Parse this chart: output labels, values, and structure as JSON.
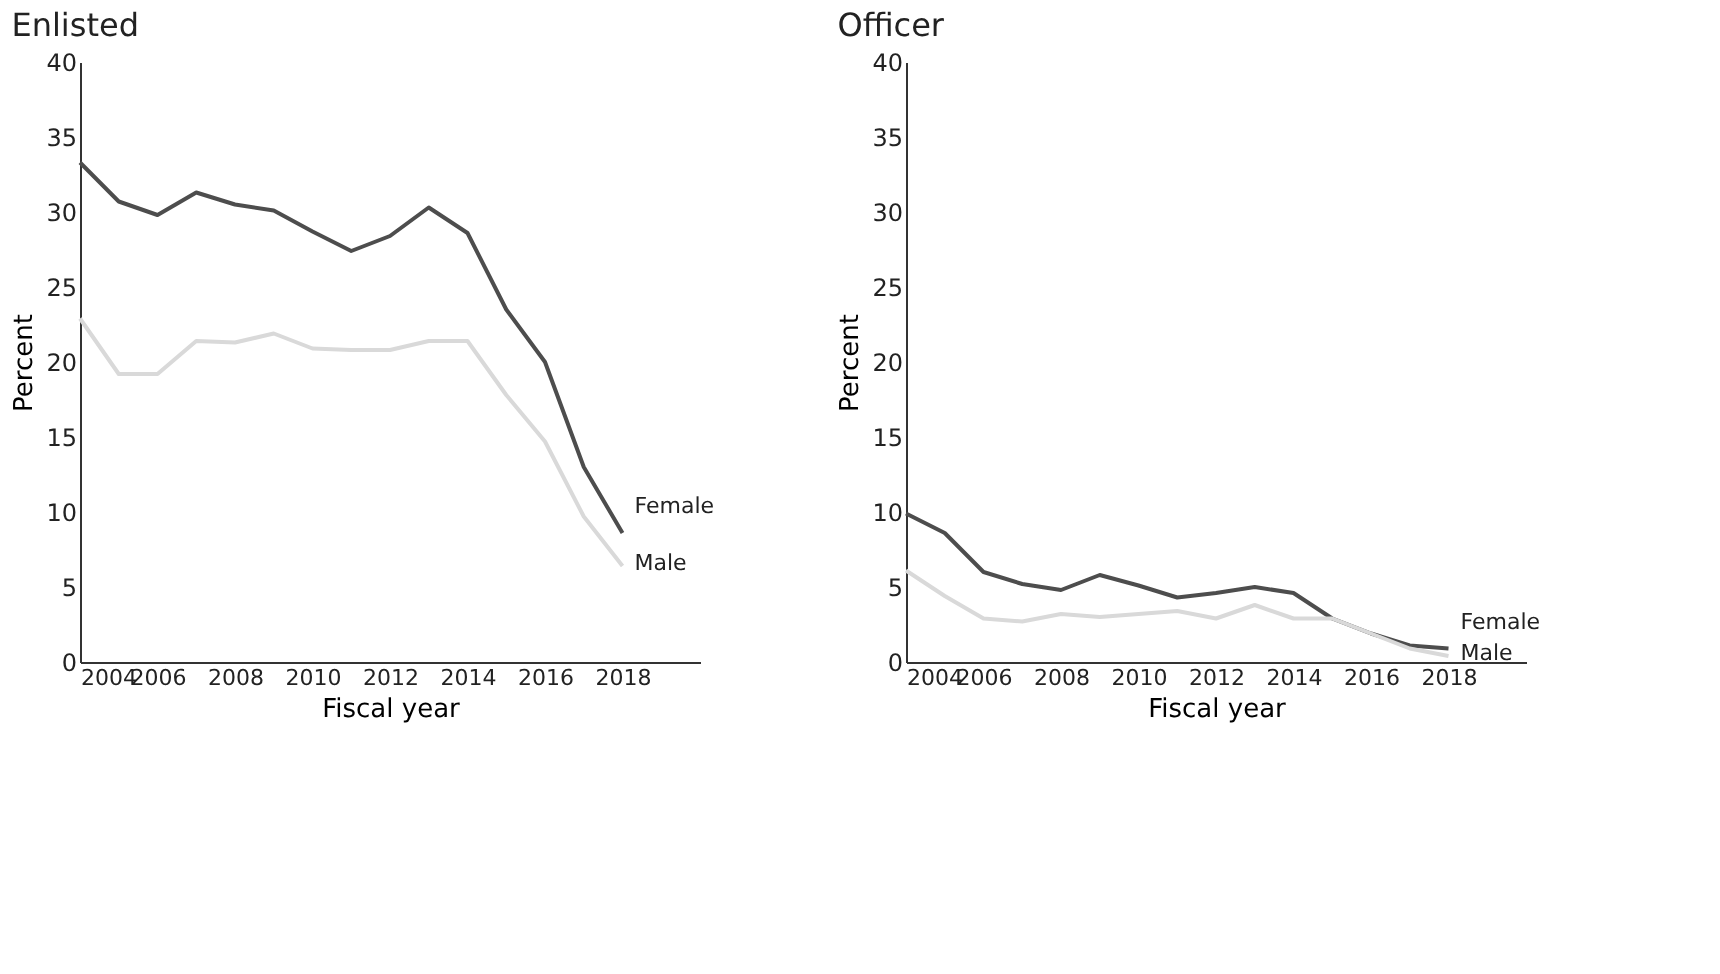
{
  "chart_data": [
    {
      "type": "line",
      "title": "Enlisted",
      "xlabel": "Fiscal year",
      "ylabel": "Percent",
      "x": [
        2004,
        2005,
        2006,
        2007,
        2008,
        2009,
        2010,
        2011,
        2012,
        2013,
        2014,
        2015,
        2016,
        2017,
        2018
      ],
      "xlim": [
        2004,
        2020
      ],
      "xticks": [
        2004,
        2006,
        2008,
        2010,
        2012,
        2014,
        2016,
        2018
      ],
      "ylim": [
        0,
        40
      ],
      "yticks": [
        0,
        5,
        10,
        15,
        20,
        25,
        30,
        35,
        40
      ],
      "grid": false,
      "legend": false,
      "series": [
        {
          "name": "Female",
          "color": "#4d4d4d",
          "values": [
            33.3,
            30.7,
            29.8,
            31.3,
            30.5,
            30.1,
            28.7,
            27.4,
            28.4,
            30.3,
            28.6,
            23.5,
            20.0,
            13.0,
            8.6
          ]
        },
        {
          "name": "Male",
          "color": "#d9d9d9",
          "values": [
            22.9,
            19.2,
            19.2,
            21.4,
            21.3,
            21.9,
            20.9,
            20.8,
            20.8,
            21.4,
            21.4,
            17.8,
            14.7,
            9.7,
            6.4
          ]
        }
      ]
    },
    {
      "type": "line",
      "title": "Officer",
      "xlabel": "Fiscal year",
      "ylabel": "Percent",
      "x": [
        2004,
        2005,
        2006,
        2007,
        2008,
        2009,
        2010,
        2011,
        2012,
        2013,
        2014,
        2015,
        2016,
        2017,
        2018
      ],
      "xlim": [
        2004,
        2020
      ],
      "xticks": [
        2004,
        2006,
        2008,
        2010,
        2012,
        2014,
        2016,
        2018
      ],
      "ylim": [
        0,
        40
      ],
      "yticks": [
        0,
        5,
        10,
        15,
        20,
        25,
        30,
        35,
        40
      ],
      "grid": false,
      "legend": false,
      "series": [
        {
          "name": "Female",
          "color": "#4d4d4d",
          "values": [
            9.9,
            8.6,
            6.0,
            5.2,
            4.8,
            5.8,
            5.1,
            4.3,
            4.6,
            5.0,
            4.6,
            2.9,
            1.9,
            1.1,
            0.9
          ]
        },
        {
          "name": "Male",
          "color": "#d9d9d9",
          "values": [
            6.1,
            4.4,
            2.9,
            2.7,
            3.2,
            3.0,
            3.2,
            3.4,
            2.9,
            3.8,
            2.9,
            2.9,
            1.9,
            0.9,
            0.4
          ]
        }
      ]
    }
  ]
}
